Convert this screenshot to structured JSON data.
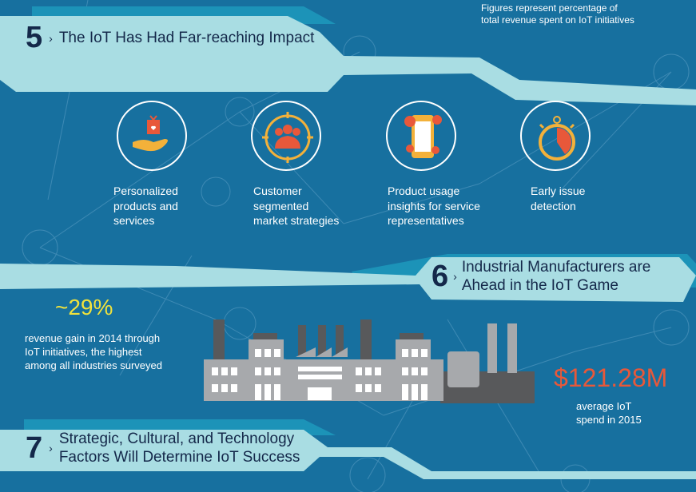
{
  "note": {
    "line1": "Figures represent percentage of",
    "line2": "total revenue spent on IoT initiatives"
  },
  "section5": {
    "number": "5",
    "title": "The IoT Has Had Far-reaching Impact",
    "items": [
      {
        "icon": "gift-in-hand-icon",
        "lines": [
          "Personalized",
          "products and",
          "services"
        ]
      },
      {
        "icon": "target-group-icon",
        "lines": [
          "Customer",
          "segmented",
          "market strategies"
        ]
      },
      {
        "icon": "smartphone-apps-icon",
        "lines": [
          "Product usage",
          "insights for service",
          "representatives"
        ]
      },
      {
        "icon": "stopwatch-icon",
        "lines": [
          "Early issue",
          "detection"
        ]
      }
    ]
  },
  "section6": {
    "number": "6",
    "title_line1": "Industrial Manufacturers are",
    "title_line2": "Ahead in the IoT Game",
    "stat1": {
      "value": "~29%",
      "lines": [
        "revenue gain in 2014 through",
        "IoT initiatives, the highest",
        "among all industries surveyed"
      ]
    },
    "stat2": {
      "value": "$121.28M",
      "lines": [
        "average IoT",
        "spend in 2015"
      ]
    }
  },
  "section7": {
    "number": "7",
    "title_line1": "Strategic, Cultural, and Technology",
    "title_line2": "Factors Will Determine IoT Success"
  },
  "colors": {
    "background": "#17709f",
    "band": "#a9dde3",
    "accent_yellow": "#f0e23c",
    "accent_orange": "#e8583a",
    "icon_gold": "#f3b13a"
  }
}
